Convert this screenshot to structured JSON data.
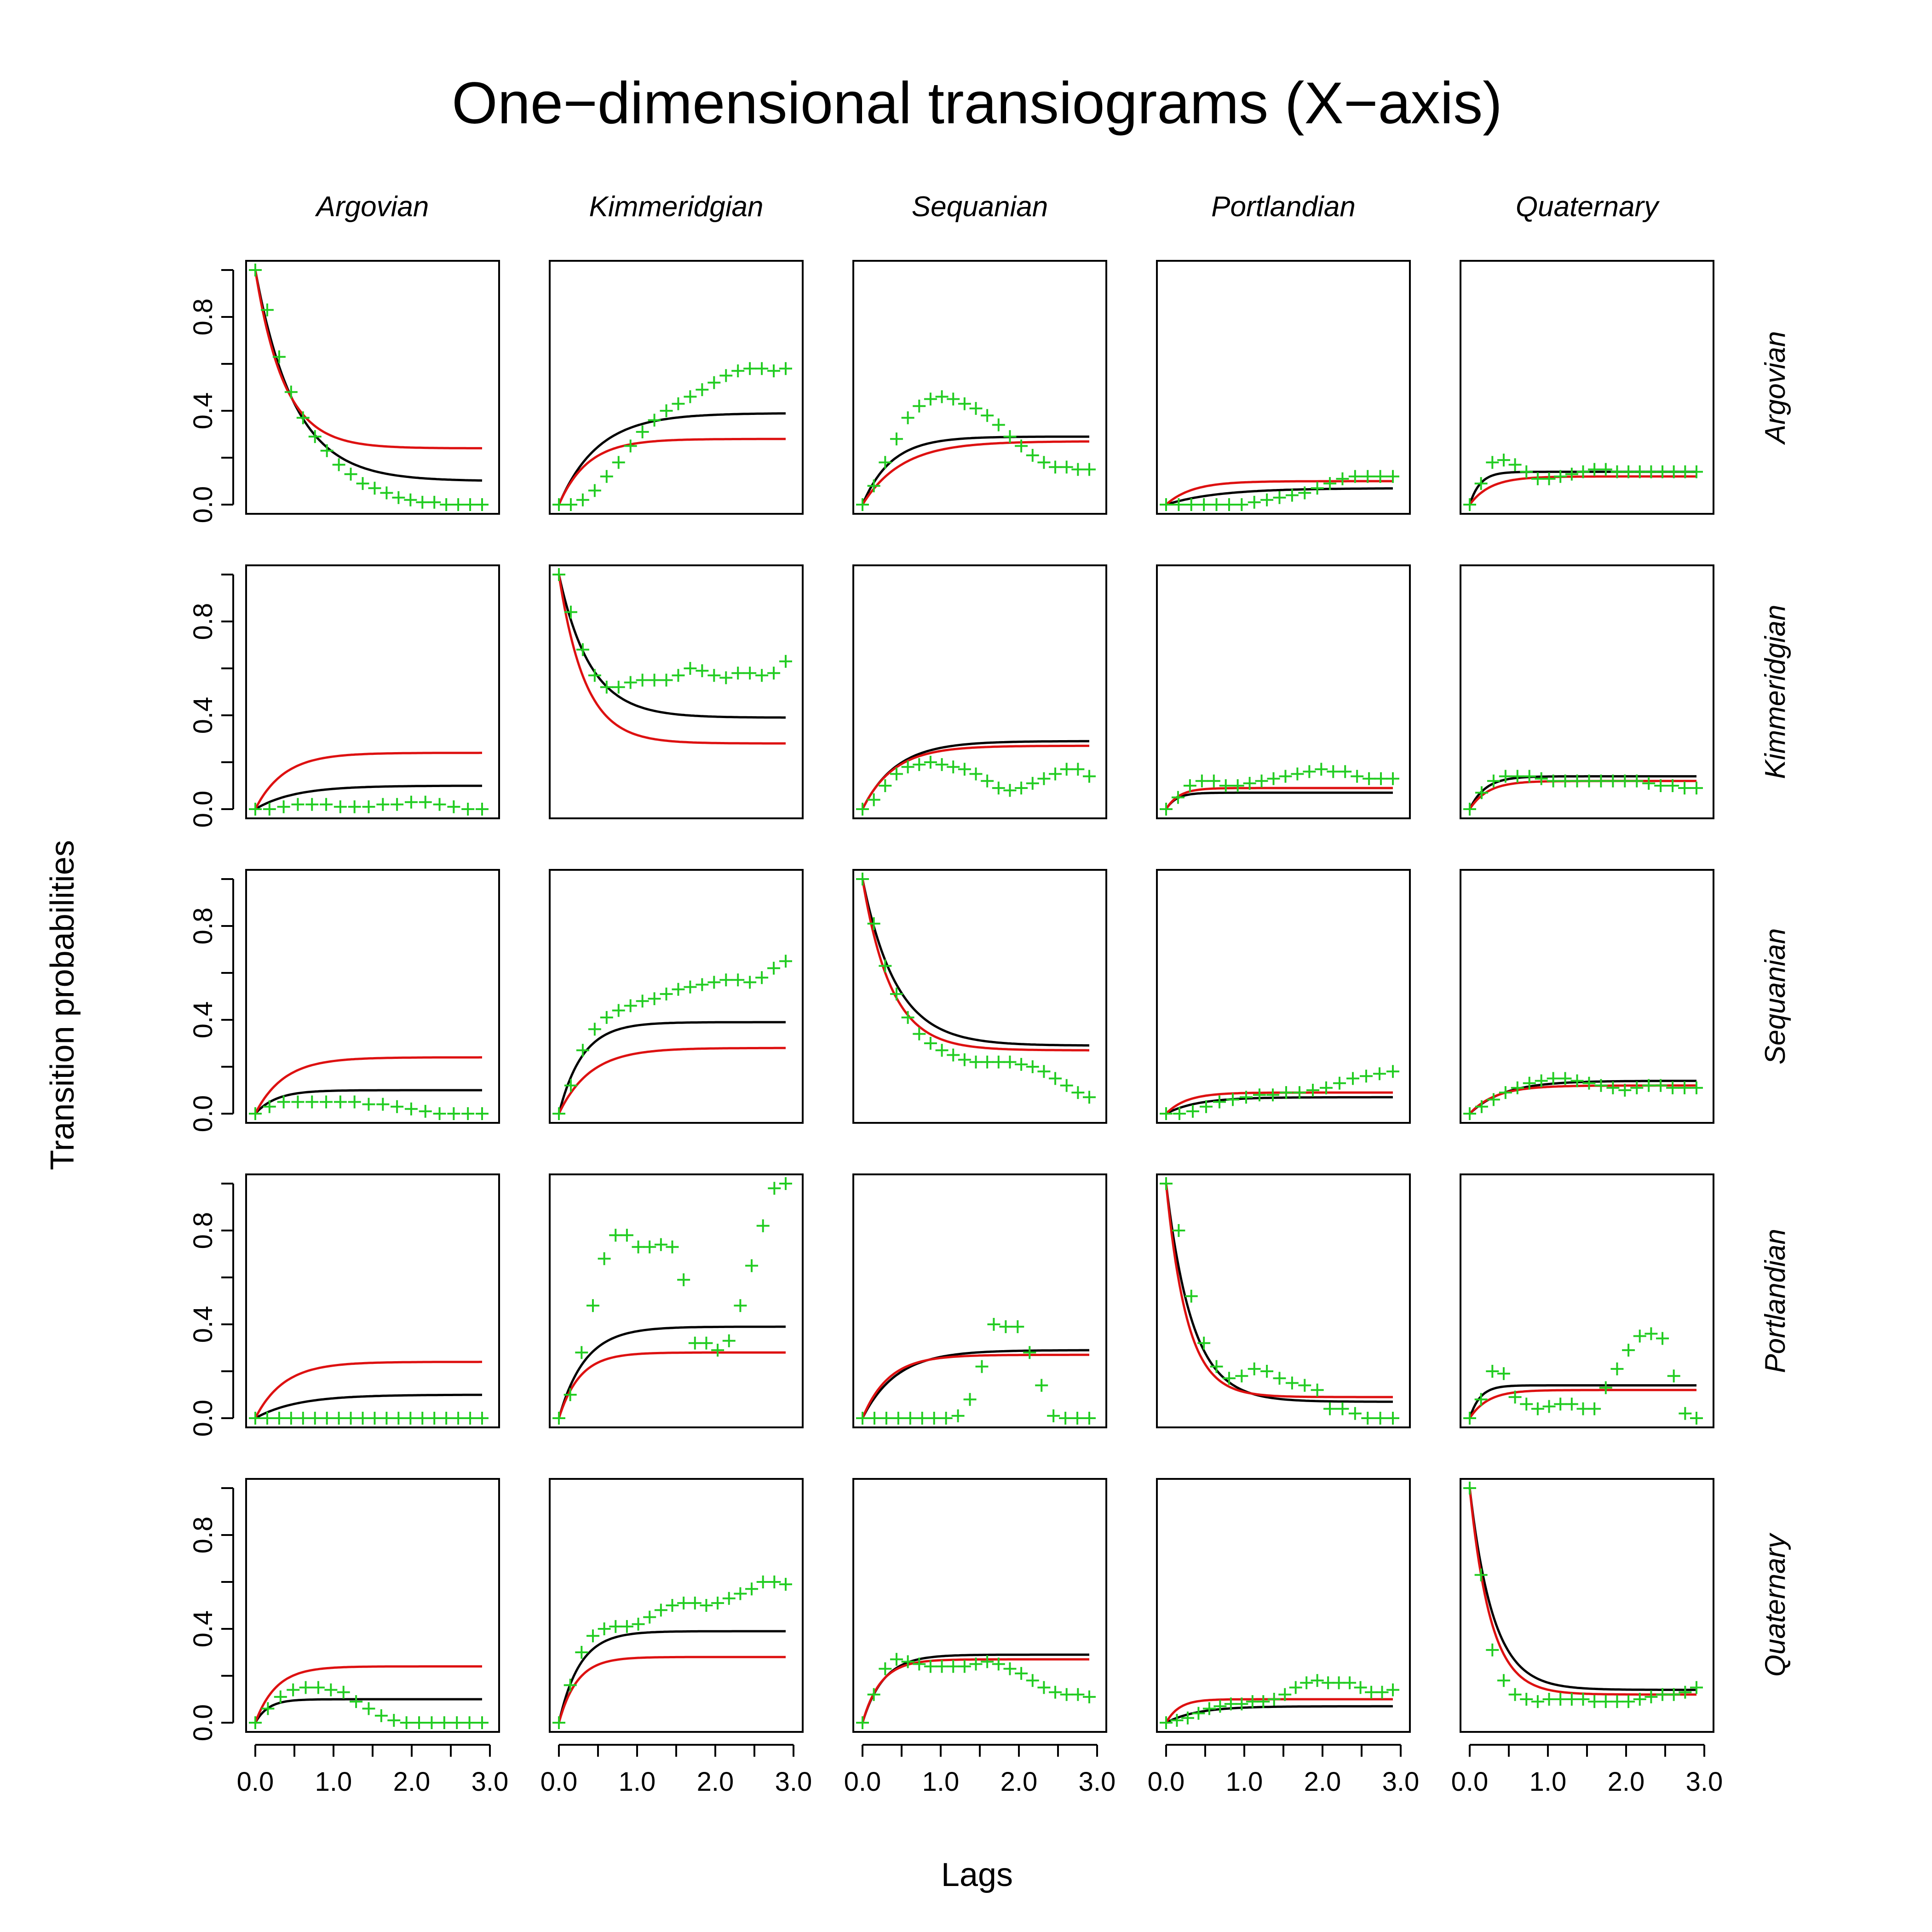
{
  "chart_data": {
    "type": "line",
    "title": "One−dimensional transiograms (X−axis)",
    "xlabel": "Lags",
    "ylabel": "Transition probabilities",
    "categories": [
      "Argovian",
      "Kimmeridgian",
      "Sequanian",
      "Portlandian",
      "Quaternary"
    ],
    "xlim": [
      0,
      3.0
    ],
    "ylim": [
      0,
      1.0
    ],
    "x_ticks": [
      "0.0",
      "1.0",
      "2.0",
      "3.0"
    ],
    "y_ticks": [
      "0.0",
      "0.4",
      "0.8"
    ],
    "grid": false,
    "colors": {
      "empirical": "#22cc22",
      "model_black": "#000000",
      "model_red": "#dd1111"
    },
    "lags": [
      0.0,
      0.1,
      0.2,
      0.3,
      0.4,
      0.5,
      0.6,
      0.7,
      0.8,
      0.9,
      1.0,
      1.1,
      1.2,
      1.3,
      1.4,
      1.5,
      1.6,
      1.7,
      1.8,
      1.9,
      2.0,
      2.1,
      2.2,
      2.3,
      2.4,
      2.5,
      2.6,
      2.7,
      2.8,
      2.9
    ],
    "panels": [
      [
        {
          "black": {
            "sill": 0.1,
            "range": 1.5
          },
          "red": {
            "sill": 0.24,
            "range": 1.1
          },
          "empirical": [
            1.0,
            0.83,
            0.63,
            0.48,
            0.37,
            0.29,
            0.23,
            0.17,
            0.13,
            0.09,
            0.07,
            0.05,
            0.03,
            0.02,
            0.01,
            0.01,
            0.0,
            0.0,
            0.0,
            0.0
          ]
        },
        {
          "black": {
            "sill": 0.39,
            "range": 1.5
          },
          "red": {
            "sill": 0.28,
            "range": 1.1
          },
          "empirical": [
            0.0,
            0.0,
            0.02,
            0.06,
            0.12,
            0.18,
            0.25,
            0.31,
            0.36,
            0.4,
            0.43,
            0.46,
            0.49,
            0.52,
            0.55,
            0.57,
            0.58,
            0.58,
            0.57,
            0.58
          ]
        },
        {
          "black": {
            "sill": 0.29,
            "range": 1.1
          },
          "red": {
            "sill": 0.27,
            "range": 1.5
          },
          "empirical": [
            0.0,
            0.08,
            0.18,
            0.28,
            0.37,
            0.42,
            0.45,
            0.46,
            0.45,
            0.43,
            0.41,
            0.38,
            0.34,
            0.29,
            0.25,
            0.21,
            0.18,
            0.16,
            0.16,
            0.15,
            0.15
          ]
        },
        {
          "black": {
            "sill": 0.07,
            "range": 2.0
          },
          "red": {
            "sill": 0.1,
            "range": 1.0
          },
          "empirical": [
            0.0,
            0.0,
            0.0,
            0.0,
            0.0,
            0.0,
            0.0,
            0.01,
            0.02,
            0.03,
            0.04,
            0.05,
            0.07,
            0.09,
            0.11,
            0.12,
            0.12,
            0.12,
            0.12
          ]
        },
        {
          "black": {
            "sill": 0.14,
            "range": 0.4
          },
          "red": {
            "sill": 0.12,
            "range": 0.8
          },
          "empirical": [
            0.0,
            0.09,
            0.18,
            0.19,
            0.17,
            0.14,
            0.11,
            0.11,
            0.12,
            0.13,
            0.14,
            0.15,
            0.15,
            0.14,
            0.14,
            0.14,
            0.14,
            0.14,
            0.14,
            0.14,
            0.14
          ]
        }
      ],
      [
        {
          "black": {
            "sill": 0.1,
            "range": 1.5
          },
          "red": {
            "sill": 0.24,
            "range": 1.1
          },
          "empirical": [
            0.0,
            0.0,
            0.01,
            0.02,
            0.02,
            0.02,
            0.01,
            0.01,
            0.01,
            0.02,
            0.02,
            0.03,
            0.03,
            0.02,
            0.01,
            0.0,
            0.0
          ]
        },
        {
          "black": {
            "sill": 0.39,
            "range": 1.2
          },
          "red": {
            "sill": 0.28,
            "range": 1.0
          },
          "empirical": [
            1.0,
            0.84,
            0.68,
            0.57,
            0.52,
            0.52,
            0.54,
            0.55,
            0.55,
            0.55,
            0.57,
            0.6,
            0.59,
            0.57,
            0.56,
            0.58,
            0.58,
            0.57,
            0.58,
            0.63
          ]
        },
        {
          "black": {
            "sill": 0.29,
            "range": 1.3
          },
          "red": {
            "sill": 0.27,
            "range": 1.2
          },
          "empirical": [
            0.0,
            0.04,
            0.1,
            0.15,
            0.18,
            0.19,
            0.2,
            0.19,
            0.18,
            0.17,
            0.15,
            0.12,
            0.09,
            0.08,
            0.09,
            0.11,
            0.13,
            0.15,
            0.17,
            0.17,
            0.14
          ]
        },
        {
          "black": {
            "sill": 0.07,
            "range": 0.4
          },
          "red": {
            "sill": 0.09,
            "range": 0.5
          },
          "empirical": [
            0.0,
            0.05,
            0.1,
            0.12,
            0.12,
            0.1,
            0.1,
            0.11,
            0.12,
            0.13,
            0.14,
            0.15,
            0.16,
            0.17,
            0.16,
            0.16,
            0.14,
            0.13,
            0.13,
            0.13
          ]
        },
        {
          "black": {
            "sill": 0.14,
            "range": 0.6
          },
          "red": {
            "sill": 0.12,
            "range": 0.7
          },
          "empirical": [
            0.0,
            0.07,
            0.12,
            0.14,
            0.14,
            0.14,
            0.13,
            0.12,
            0.12,
            0.12,
            0.12,
            0.12,
            0.12,
            0.12,
            0.12,
            0.11,
            0.1,
            0.1,
            0.09,
            0.09
          ]
        }
      ],
      [
        {
          "black": {
            "sill": 0.1,
            "range": 0.8
          },
          "red": {
            "sill": 0.24,
            "range": 1.1
          },
          "empirical": [
            0.0,
            0.03,
            0.05,
            0.05,
            0.05,
            0.05,
            0.05,
            0.05,
            0.04,
            0.04,
            0.03,
            0.02,
            0.01,
            0.0,
            0.0,
            0.0,
            0.0
          ]
        },
        {
          "black": {
            "sill": 0.39,
            "range": 0.9
          },
          "red": {
            "sill": 0.28,
            "range": 1.2
          },
          "empirical": [
            0.0,
            0.12,
            0.27,
            0.36,
            0.41,
            0.44,
            0.46,
            0.48,
            0.49,
            0.51,
            0.53,
            0.54,
            0.55,
            0.56,
            0.57,
            0.57,
            0.56,
            0.58,
            0.62,
            0.65
          ]
        },
        {
          "black": {
            "sill": 0.29,
            "range": 1.3
          },
          "red": {
            "sill": 0.27,
            "range": 1.1
          },
          "empirical": [
            1.0,
            0.81,
            0.63,
            0.51,
            0.41,
            0.34,
            0.3,
            0.27,
            0.25,
            0.23,
            0.22,
            0.22,
            0.22,
            0.22,
            0.21,
            0.2,
            0.18,
            0.15,
            0.12,
            0.09,
            0.07
          ]
        },
        {
          "black": {
            "sill": 0.07,
            "range": 1.2
          },
          "red": {
            "sill": 0.09,
            "range": 0.8
          },
          "empirical": [
            0.0,
            0.0,
            0.01,
            0.03,
            0.05,
            0.06,
            0.07,
            0.08,
            0.08,
            0.09,
            0.09,
            0.1,
            0.11,
            0.13,
            0.15,
            0.16,
            0.17,
            0.18
          ]
        },
        {
          "black": {
            "sill": 0.14,
            "range": 1.3
          },
          "red": {
            "sill": 0.12,
            "range": 1.0
          },
          "empirical": [
            0.0,
            0.03,
            0.06,
            0.09,
            0.11,
            0.13,
            0.14,
            0.15,
            0.15,
            0.14,
            0.13,
            0.12,
            0.11,
            0.1,
            0.11,
            0.12,
            0.12,
            0.11,
            0.11,
            0.11
          ]
        }
      ],
      [
        {
          "black": {
            "sill": 0.1,
            "range": 1.6
          },
          "red": {
            "sill": 0.24,
            "range": 1.1
          },
          "empirical": [
            0.0,
            0.0,
            0.0,
            0.0,
            0.0,
            0.0,
            0.0,
            0.0,
            0.0,
            0.0,
            0.0,
            0.0,
            0.0,
            0.0,
            0.0,
            0.0,
            0.0,
            0.0,
            0.0,
            0.0
          ]
        },
        {
          "black": {
            "sill": 0.39,
            "range": 1.0
          },
          "red": {
            "sill": 0.28,
            "range": 0.8
          },
          "empirical": [
            0.0,
            0.1,
            0.28,
            0.48,
            0.68,
            0.78,
            0.78,
            0.73,
            0.73,
            0.74,
            0.73,
            0.59,
            0.32,
            0.32,
            0.29,
            0.33,
            0.48,
            0.65,
            0.82,
            0.98,
            1.0
          ]
        },
        {
          "black": {
            "sill": 0.29,
            "range": 1.3
          },
          "red": {
            "sill": 0.27,
            "range": 1.0
          },
          "empirical": [
            0.0,
            0.0,
            0.0,
            0.0,
            0.0,
            0.0,
            0.0,
            0.0,
            0.01,
            0.08,
            0.22,
            0.4,
            0.39,
            0.39,
            0.28,
            0.14,
            0.01,
            0.0,
            0.0,
            0.0
          ]
        },
        {
          "black": {
            "sill": 0.07,
            "range": 1.0
          },
          "red": {
            "sill": 0.09,
            "range": 0.8
          },
          "empirical": [
            1.0,
            0.8,
            0.52,
            0.32,
            0.22,
            0.17,
            0.18,
            0.21,
            0.2,
            0.17,
            0.15,
            0.14,
            0.12,
            0.04,
            0.04,
            0.02,
            0.0,
            0.0,
            0.0
          ]
        },
        {
          "black": {
            "sill": 0.14,
            "range": 0.4
          },
          "red": {
            "sill": 0.12,
            "range": 0.7
          },
          "empirical": [
            0.0,
            0.08,
            0.2,
            0.19,
            0.09,
            0.06,
            0.04,
            0.05,
            0.06,
            0.06,
            0.04,
            0.04,
            0.13,
            0.21,
            0.29,
            0.35,
            0.36,
            0.34,
            0.18,
            0.02,
            0.0
          ]
        }
      ],
      [
        {
          "black": {
            "sill": 0.1,
            "range": 0.5
          },
          "red": {
            "sill": 0.24,
            "range": 0.8
          },
          "empirical": [
            0.0,
            0.06,
            0.11,
            0.14,
            0.15,
            0.15,
            0.14,
            0.13,
            0.09,
            0.06,
            0.03,
            0.01,
            0.0,
            0.0,
            0.0,
            0.0,
            0.0,
            0.0,
            0.0
          ]
        },
        {
          "black": {
            "sill": 0.39,
            "range": 0.8
          },
          "red": {
            "sill": 0.28,
            "range": 0.7
          },
          "empirical": [
            0.0,
            0.16,
            0.3,
            0.37,
            0.4,
            0.41,
            0.41,
            0.42,
            0.45,
            0.48,
            0.5,
            0.51,
            0.51,
            0.5,
            0.51,
            0.53,
            0.55,
            0.57,
            0.6,
            0.6,
            0.59
          ]
        },
        {
          "black": {
            "sill": 0.29,
            "range": 0.8
          },
          "red": {
            "sill": 0.27,
            "range": 0.7
          },
          "empirical": [
            0.0,
            0.12,
            0.23,
            0.27,
            0.26,
            0.25,
            0.24,
            0.24,
            0.24,
            0.24,
            0.25,
            0.26,
            0.25,
            0.23,
            0.21,
            0.18,
            0.15,
            0.13,
            0.12,
            0.12,
            0.11
          ]
        },
        {
          "black": {
            "sill": 0.07,
            "range": 1.2
          },
          "red": {
            "sill": 0.1,
            "range": 0.5
          },
          "empirical": [
            0.0,
            0.01,
            0.02,
            0.04,
            0.06,
            0.07,
            0.08,
            0.08,
            0.09,
            0.09,
            0.1,
            0.12,
            0.15,
            0.17,
            0.18,
            0.17,
            0.17,
            0.17,
            0.15,
            0.13,
            0.13,
            0.14
          ]
        },
        {
          "black": {
            "sill": 0.14,
            "range": 0.9
          },
          "red": {
            "sill": 0.12,
            "range": 0.8
          },
          "empirical": [
            1.0,
            0.63,
            0.31,
            0.18,
            0.12,
            0.1,
            0.09,
            0.1,
            0.1,
            0.1,
            0.1,
            0.09,
            0.09,
            0.09,
            0.09,
            0.1,
            0.11,
            0.12,
            0.12,
            0.13,
            0.15
          ]
        }
      ]
    ]
  }
}
